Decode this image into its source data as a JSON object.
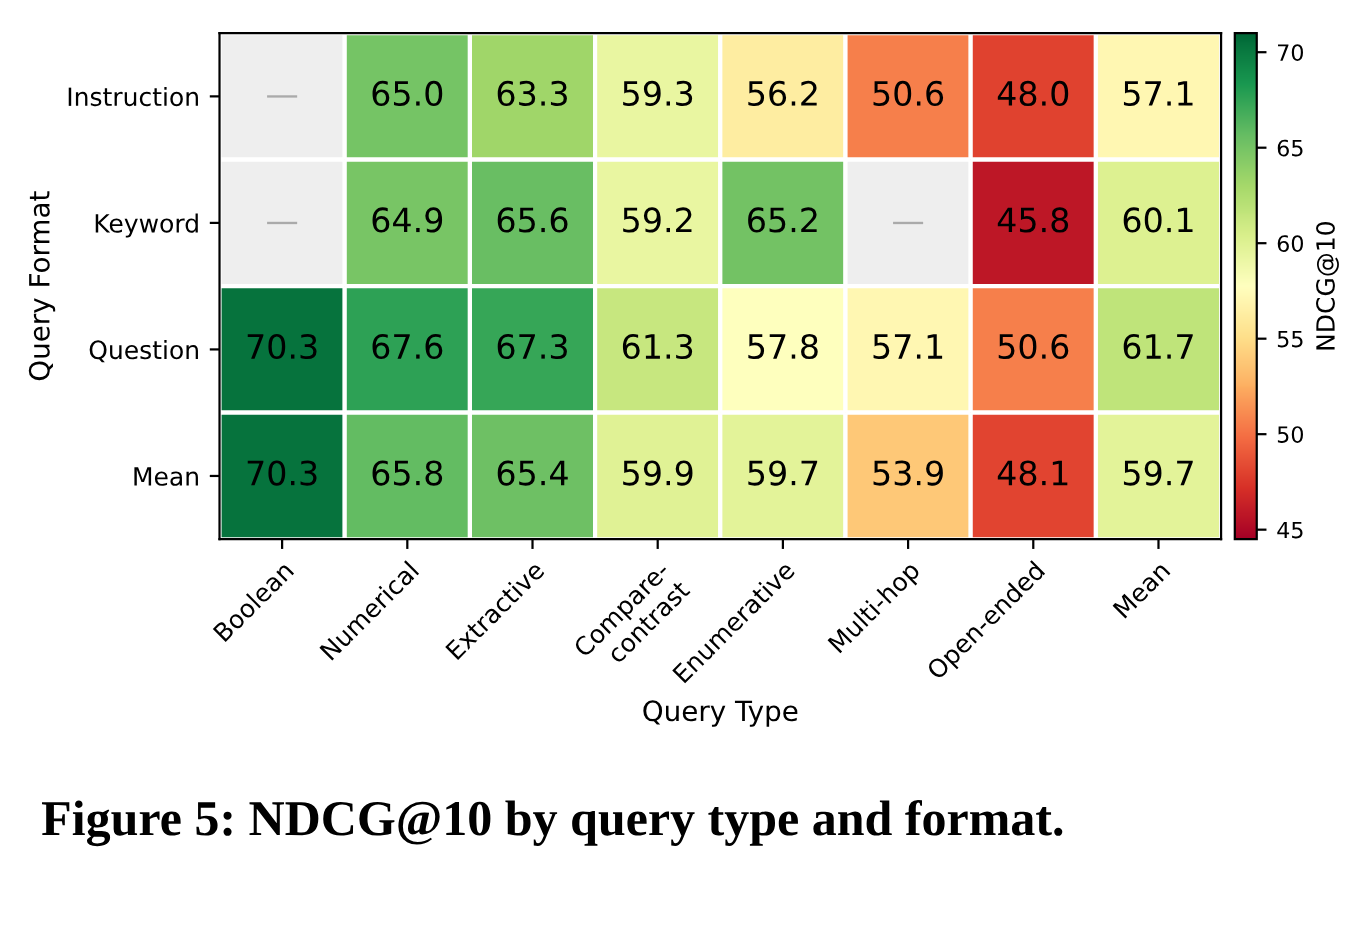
{
  "chart_data": {
    "type": "heatmap",
    "xlabel": "Query Type",
    "ylabel": "Query Format",
    "clabel": "NDCG@10",
    "categories": [
      "Boolean",
      "Numerical",
      "Extractive",
      "Compare-\ncontrast",
      "Enumerative",
      "Multi-hop",
      "Open-ended",
      "Mean"
    ],
    "y_categories": [
      "Instruction",
      "Keyword",
      "Question",
      "Mean"
    ],
    "cells": [
      [
        null,
        65.0,
        63.3,
        59.3,
        56.2,
        50.6,
        48.0,
        57.1
      ],
      [
        null,
        64.9,
        65.6,
        59.2,
        65.2,
        null,
        45.8,
        60.1
      ],
      [
        70.3,
        67.6,
        67.3,
        61.3,
        57.8,
        57.1,
        50.6,
        61.7
      ],
      [
        70.3,
        65.8,
        65.4,
        59.9,
        59.7,
        53.9,
        48.1,
        59.7
      ]
    ],
    "cell_labels": [
      [
        "—",
        "65.0",
        "63.3",
        "59.3",
        "56.2",
        "50.6",
        "48.0",
        "57.1"
      ],
      [
        "—",
        "64.9",
        "65.6",
        "59.2",
        "65.2",
        "—",
        "45.8",
        "60.1"
      ],
      [
        "70.3",
        "67.6",
        "67.3",
        "61.3",
        "57.8",
        "57.1",
        "50.6",
        "61.7"
      ],
      [
        "70.3",
        "65.8",
        "65.4",
        "59.9",
        "59.7",
        "53.9",
        "48.1",
        "59.7"
      ]
    ],
    "clim": [
      44.5,
      71
    ],
    "cticks": [
      45,
      50,
      55,
      60,
      65,
      70
    ],
    "annotations": [
      "Figure 5: NDCG@10 by query type and format."
    ]
  }
}
